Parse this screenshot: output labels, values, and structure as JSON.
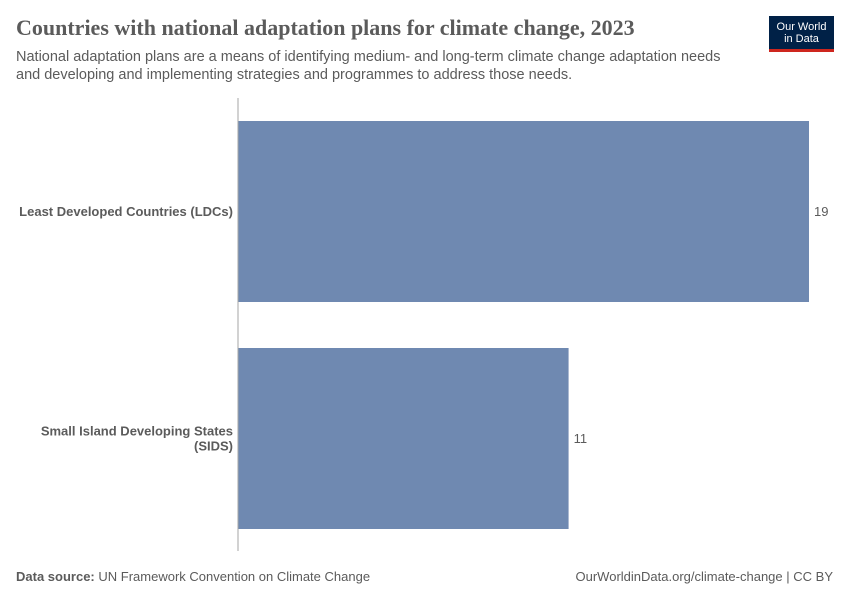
{
  "header": {
    "title": "Countries with national adaptation plans for climate change, 2023",
    "subtitle": "National adaptation plans are a means of identifying medium- and long-term climate change adaptation needs and developing and implementing strategies and programmes to address those needs.",
    "logo_line1": "Our World",
    "logo_line2": "in Data"
  },
  "footer": {
    "source_label": "Data source:",
    "source_text": "UN Framework Convention on Climate Change",
    "site_link": "OurWorldinData.org/climate-change",
    "license": "| CC BY"
  },
  "colors": {
    "bar": "#6f89b1",
    "axis": "#a6a6a6",
    "label": "#5b5b5b",
    "logo_bg": "#002147",
    "logo_accent": "#ce261e"
  },
  "chart_data": {
    "type": "bar",
    "orientation": "horizontal",
    "categories": [
      "Least Developed Countries (LDCs)",
      "Small Island Developing States (SIDS)"
    ],
    "category_lines": [
      [
        "Least Developed Countries (LDCs)"
      ],
      [
        "Small Island Developing States",
        "(SIDS)"
      ]
    ],
    "values": [
      19,
      11
    ],
    "value_labels": [
      "19",
      "11"
    ],
    "xlim": [
      0,
      19
    ],
    "grid": false
  }
}
